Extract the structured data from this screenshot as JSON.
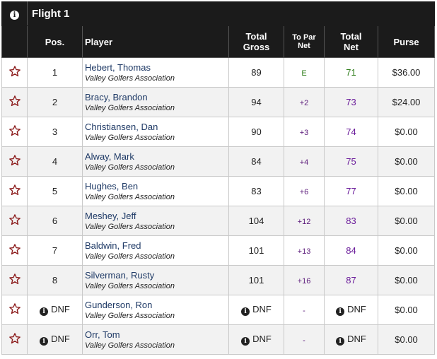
{
  "flight_title": "Flight 1",
  "headers": {
    "pos": "Pos.",
    "player": "Player",
    "total_gross_1": "Total",
    "total_gross_2": "Gross",
    "to_par_1": "To Par",
    "to_par_2": "Net",
    "total_net_1": "Total",
    "total_net_2": "Net",
    "purse": "Purse"
  },
  "icons": {
    "info": "info-icon",
    "favorite": "star-outline-icon"
  },
  "colors": {
    "header_bg": "#1b1b1b",
    "star": "#8b1a1a",
    "player_link": "#1f3a66",
    "net_over": "#6a1b9a",
    "net_even": "#2e7d1a"
  },
  "rows": [
    {
      "pos": "1",
      "name": "Hebert, Thomas",
      "assoc": "Valley Golfers Association",
      "gross": "89",
      "topar": "E",
      "net": "71",
      "purse": "$36.00"
    },
    {
      "pos": "2",
      "name": "Bracy, Brandon",
      "assoc": "Valley Golfers Association",
      "gross": "94",
      "topar": "+2",
      "net": "73",
      "purse": "$24.00"
    },
    {
      "pos": "3",
      "name": "Christiansen, Dan",
      "assoc": "Valley Golfers Association",
      "gross": "90",
      "topar": "+3",
      "net": "74",
      "purse": "$0.00"
    },
    {
      "pos": "4",
      "name": "Alway, Mark",
      "assoc": "Valley Golfers Association",
      "gross": "84",
      "topar": "+4",
      "net": "75",
      "purse": "$0.00"
    },
    {
      "pos": "5",
      "name": "Hughes, Ben",
      "assoc": "Valley Golfers Association",
      "gross": "83",
      "topar": "+6",
      "net": "77",
      "purse": "$0.00"
    },
    {
      "pos": "6",
      "name": "Meshey, Jeff",
      "assoc": "Valley Golfers Association",
      "gross": "104",
      "topar": "+12",
      "net": "83",
      "purse": "$0.00"
    },
    {
      "pos": "7",
      "name": "Baldwin, Fred",
      "assoc": "Valley Golfers Association",
      "gross": "101",
      "topar": "+13",
      "net": "84",
      "purse": "$0.00"
    },
    {
      "pos": "8",
      "name": "Silverman, Rusty",
      "assoc": "Valley Golfers Association",
      "gross": "101",
      "topar": "+16",
      "net": "87",
      "purse": "$0.00"
    },
    {
      "pos": "DNF",
      "name": "Gunderson, Ron",
      "assoc": "Valley Golfers Association",
      "gross": "DNF",
      "topar": "-",
      "net": "DNF",
      "purse": "$0.00"
    },
    {
      "pos": "DNF",
      "name": "Orr, Tom",
      "assoc": "Valley Golfers Association",
      "gross": "DNF",
      "topar": "-",
      "net": "DNF",
      "purse": "$0.00"
    }
  ]
}
